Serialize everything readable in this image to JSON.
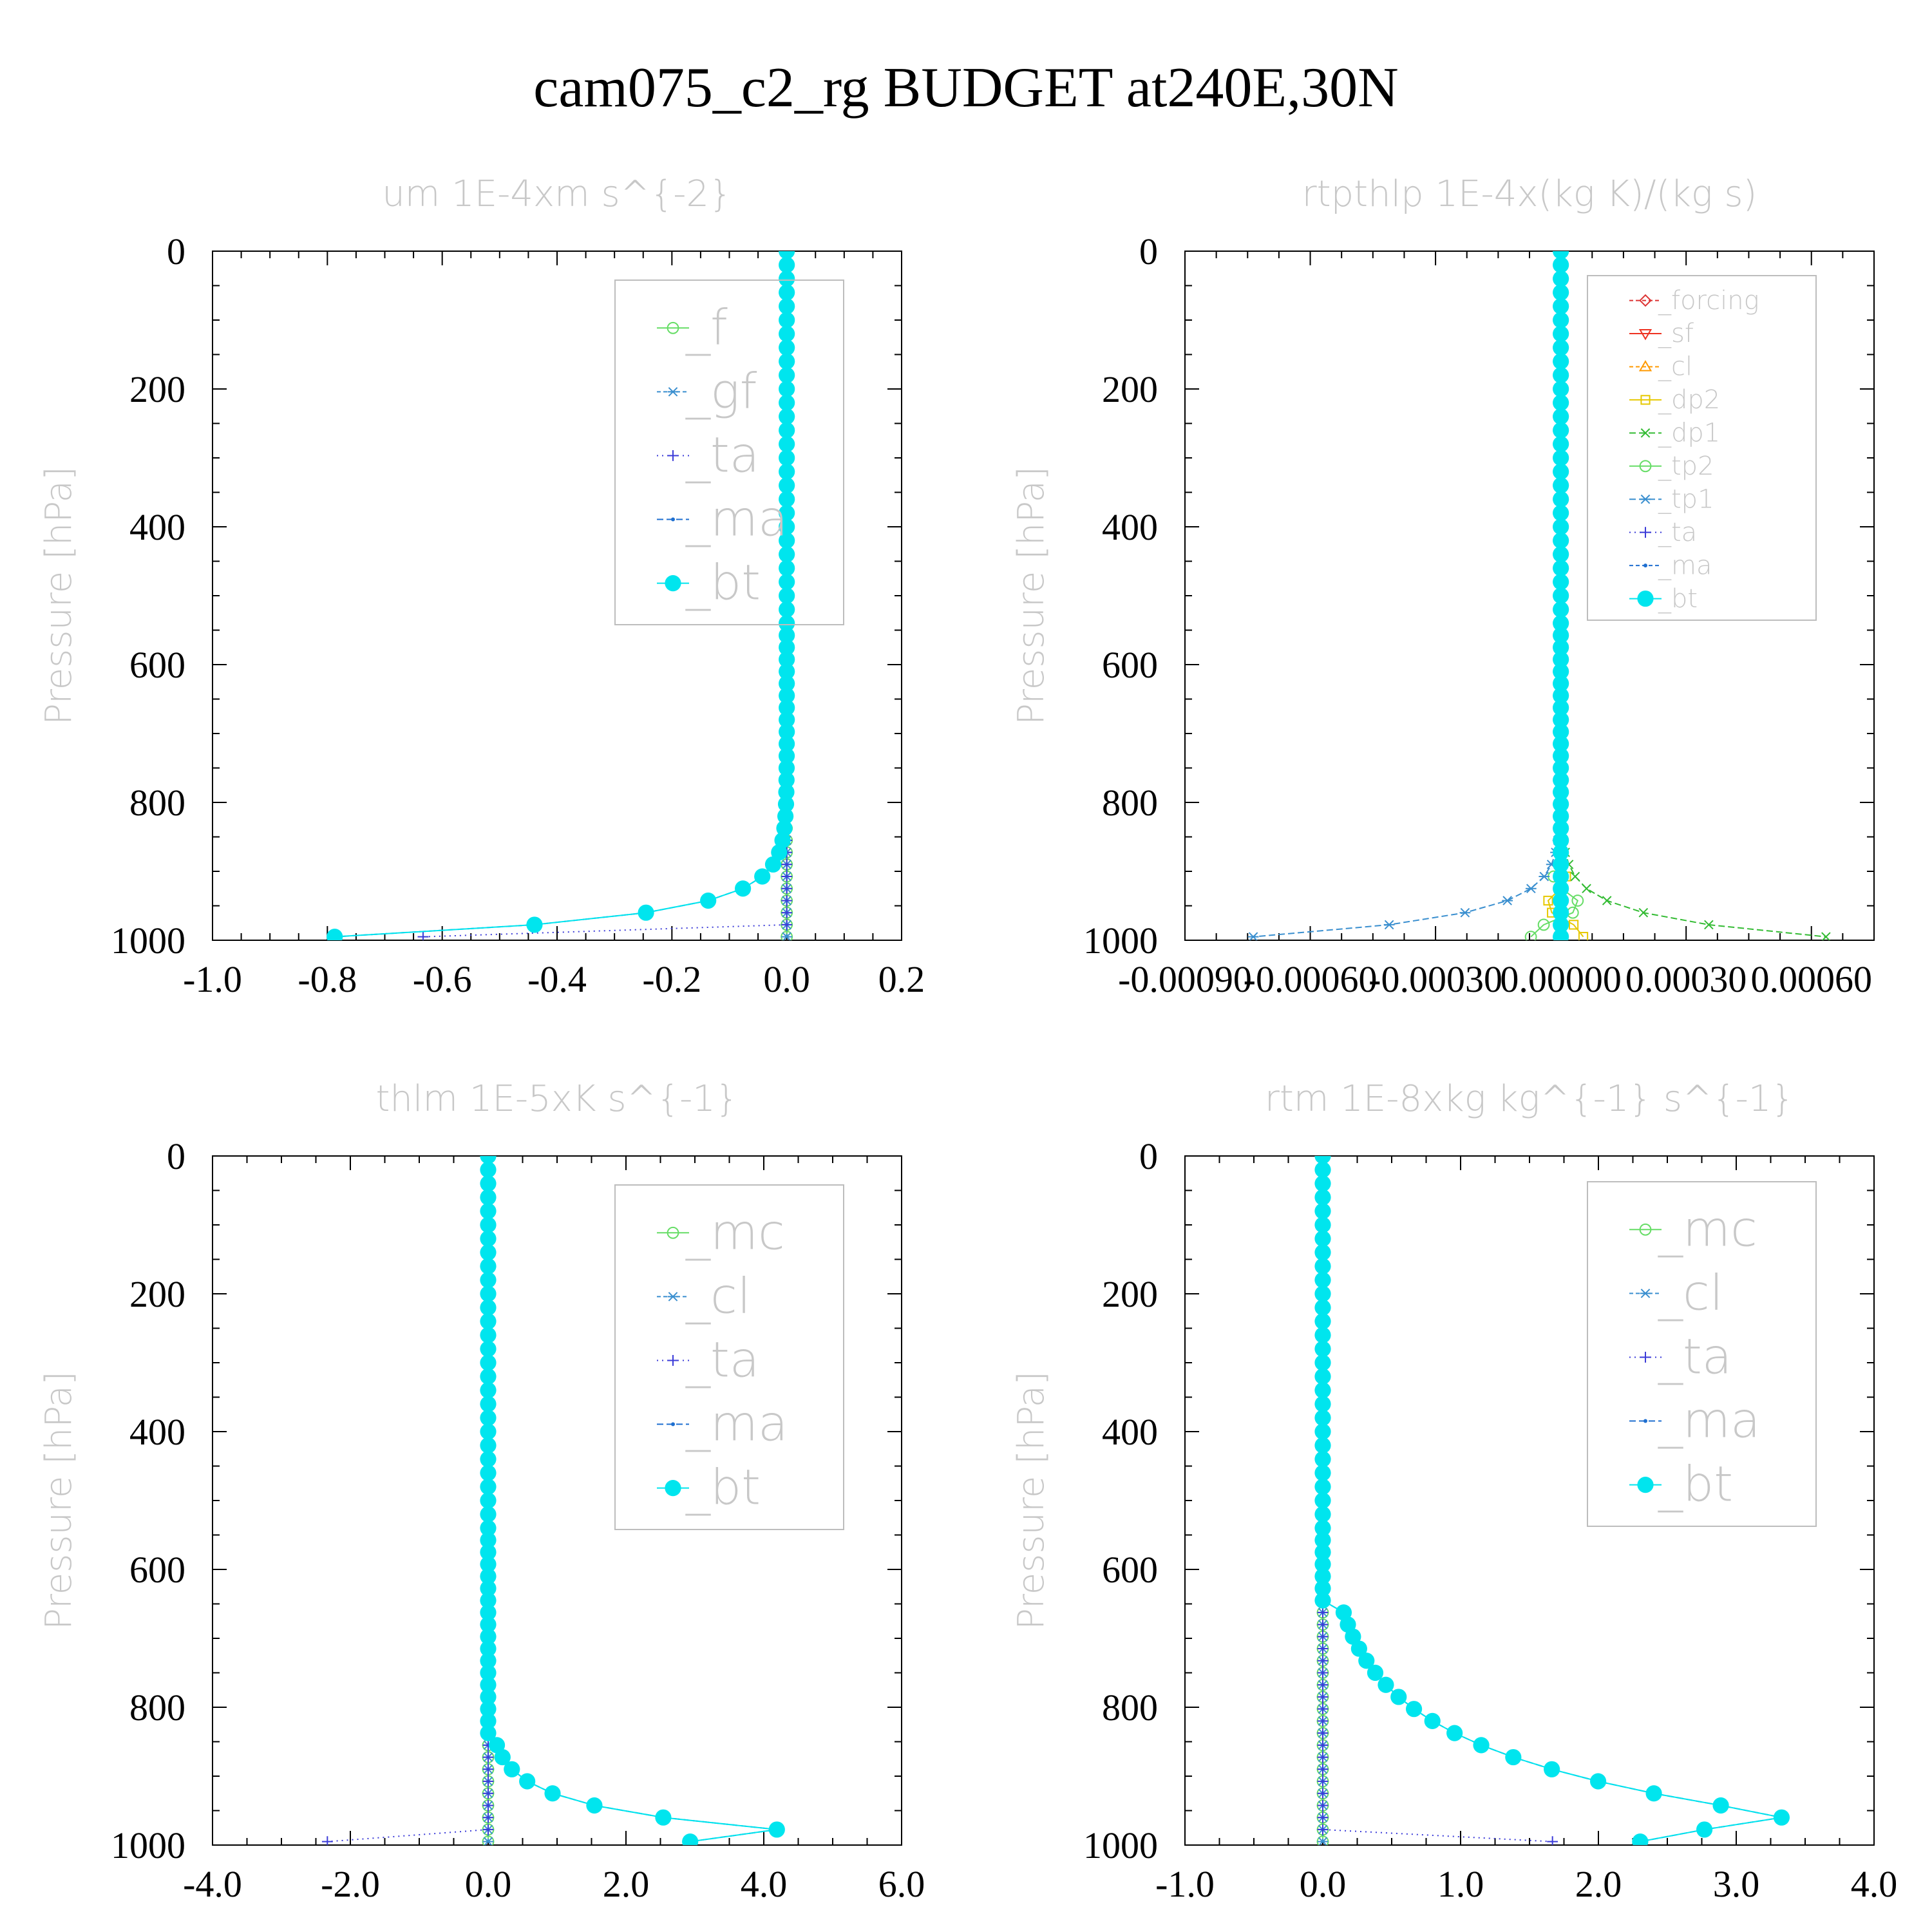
{
  "figure": {
    "title": "cam075_c2_rg  BUDGET at240E,30N"
  },
  "chart_data": [
    {
      "type": "line",
      "title": "um   1E-4xm s^{-2}",
      "ylabel": "Pressure [hPa]",
      "xlabel": "",
      "xlim": [
        -1.0,
        0.2
      ],
      "ylim": [
        1000,
        0
      ],
      "xticks": [
        "-1.0",
        "-0.8",
        "-0.6",
        "-0.4",
        "-0.2",
        "0.0",
        "0.2"
      ],
      "xtick_values": [
        -1.0,
        -0.8,
        -0.6,
        -0.4,
        -0.2,
        0.0,
        0.2
      ],
      "yticks": [
        "0",
        "200",
        "400",
        "600",
        "800",
        "1000"
      ],
      "ytick_values": [
        0,
        200,
        400,
        600,
        800,
        1000
      ],
      "legend_position": "top-right",
      "legend_size": "large",
      "series": [
        {
          "name": "_f",
          "color": "#66dd66",
          "marker": "circle",
          "dash": "none",
          "profile": "zero",
          "amp": 0.0
        },
        {
          "name": "_gf",
          "color": "#3a8fcf",
          "marker": "asterisk",
          "dash": "6,4",
          "profile": "zero",
          "amp": 0.0
        },
        {
          "name": "_ta",
          "color": "#3b3bd8",
          "marker": "plus",
          "dash": "2,6",
          "profile": "spike",
          "amp": -0.95
        },
        {
          "name": "_ma",
          "color": "#1f6fd0",
          "marker": "dot",
          "dash": "10,5",
          "profile": "decay",
          "amp": -0.93
        },
        {
          "name": "_bt",
          "color": "#00e5ee",
          "marker": "filled-circle",
          "dash": "none",
          "profile": "decay",
          "amp": -0.93
        }
      ]
    },
    {
      "type": "line",
      "title": "rtpthlp   1E-4x(kg K)/(kg s)",
      "ylabel": "Pressure [hPa]",
      "xlabel": "",
      "xlim": [
        -0.0009,
        0.00075
      ],
      "ylim": [
        1000,
        0
      ],
      "xticks": [
        "-0.00090",
        "-0.00060",
        "-0.00030",
        "0.00000",
        "0.00030",
        "0.00060"
      ],
      "xtick_values": [
        -0.0009,
        -0.0006,
        -0.0003,
        0.0,
        0.0003,
        0.0006
      ],
      "yticks": [
        "0",
        "200",
        "400",
        "600",
        "800",
        "1000"
      ],
      "ytick_values": [
        0,
        200,
        400,
        600,
        800,
        1000
      ],
      "legend_position": "top-right",
      "legend_size": "small",
      "series": [
        {
          "name": "_forcing",
          "color": "#dd3333",
          "marker": "diamond",
          "dash": "6,4",
          "profile": "zero",
          "amp": 0.0
        },
        {
          "name": "_sf",
          "color": "#ee3322",
          "marker": "triangle-down",
          "dash": "none",
          "profile": "zero",
          "amp": 0.0
        },
        {
          "name": "_cl",
          "color": "#ff9900",
          "marker": "triangle-up",
          "dash": "6,4",
          "profile": "zero",
          "amp": 0.0
        },
        {
          "name": "_dp2",
          "color": "#e6c800",
          "marker": "square",
          "dash": "none",
          "profile": "wiggle",
          "amp": 6e-05
        },
        {
          "name": "_dp1",
          "color": "#33bb33",
          "marker": "x",
          "dash": "10,5",
          "profile": "decay",
          "amp": 0.00075
        },
        {
          "name": "_tp2",
          "color": "#66dd66",
          "marker": "circle",
          "dash": "none",
          "profile": "wiggle",
          "amp": -8e-05
        },
        {
          "name": "_tp1",
          "color": "#3a8fcf",
          "marker": "asterisk",
          "dash": "10,5",
          "profile": "decay",
          "amp": -0.00087
        },
        {
          "name": "_ta",
          "color": "#3b3bd8",
          "marker": "plus",
          "dash": "2,6",
          "profile": "zero",
          "amp": 0.0
        },
        {
          "name": "_ma",
          "color": "#1f6fd0",
          "marker": "dot",
          "dash": "6,4",
          "profile": "zero",
          "amp": 0.0
        },
        {
          "name": "_bt",
          "color": "#00e5ee",
          "marker": "filled-circle",
          "dash": "none",
          "profile": "zero",
          "amp": 0.0
        }
      ]
    },
    {
      "type": "line",
      "title": "thlm   1E-5xK s^{-1}",
      "ylabel": "Pressure [hPa]",
      "xlabel": "",
      "xlim": [
        -4.0,
        6.0
      ],
      "ylim": [
        1000,
        0
      ],
      "xticks": [
        "-4.0",
        "-2.0",
        "0.0",
        "2.0",
        "4.0",
        "6.0"
      ],
      "xtick_values": [
        -4.0,
        -2.0,
        0.0,
        2.0,
        4.0,
        6.0
      ],
      "yticks": [
        "0",
        "200",
        "400",
        "600",
        "800",
        "1000"
      ],
      "ytick_values": [
        0,
        200,
        400,
        600,
        800,
        1000
      ],
      "legend_position": "top-right",
      "legend_size": "large",
      "series": [
        {
          "name": "_mc",
          "color": "#66dd66",
          "marker": "circle",
          "dash": "none",
          "profile": "zero",
          "amp": 0.0
        },
        {
          "name": "_cl",
          "color": "#3a8fcf",
          "marker": "asterisk",
          "dash": "6,4",
          "profile": "zero",
          "amp": 0.0
        },
        {
          "name": "_ta",
          "color": "#3b3bd8",
          "marker": "plus",
          "dash": "2,6",
          "profile": "spike",
          "amp": -3.5
        },
        {
          "name": "_ma",
          "color": "#1f6fd0",
          "marker": "dot",
          "dash": "10,5",
          "profile": "peak",
          "amp": 4.5
        },
        {
          "name": "_bt",
          "color": "#00e5ee",
          "marker": "filled-circle",
          "dash": "none",
          "profile": "peak",
          "amp": 4.5
        }
      ]
    },
    {
      "type": "line",
      "title": "rtm   1E-8xkg kg^{-1} s^{-1}",
      "ylabel": "Pressure [hPa]",
      "xlabel": "",
      "xlim": [
        -1.0,
        4.0
      ],
      "ylim": [
        1000,
        0
      ],
      "xticks": [
        "-1.0",
        "0.0",
        "1.0",
        "2.0",
        "3.0",
        "4.0"
      ],
      "xtick_values": [
        -1.0,
        0.0,
        1.0,
        2.0,
        3.0,
        4.0
      ],
      "yticks": [
        "0",
        "200",
        "400",
        "600",
        "800",
        "1000"
      ],
      "ytick_values": [
        0,
        200,
        400,
        600,
        800,
        1000
      ],
      "legend_position": "top-right",
      "legend_size": "large",
      "series": [
        {
          "name": "_mc",
          "color": "#66dd66",
          "marker": "circle",
          "dash": "none",
          "profile": "zero",
          "amp": 0.0
        },
        {
          "name": "_cl",
          "color": "#3a8fcf",
          "marker": "asterisk",
          "dash": "6,4",
          "profile": "zero",
          "amp": 0.0
        },
        {
          "name": "_ta",
          "color": "#3b3bd8",
          "marker": "plus",
          "dash": "2,6",
          "profile": "spike",
          "amp": 2.5
        },
        {
          "name": "_ma",
          "color": "#1f6fd0",
          "marker": "dot",
          "dash": "10,5",
          "profile": "broad",
          "amp": 3.4
        },
        {
          "name": "_bt",
          "color": "#00e5ee",
          "marker": "filled-circle",
          "dash": "none",
          "profile": "broad",
          "amp": 3.4
        }
      ]
    }
  ]
}
